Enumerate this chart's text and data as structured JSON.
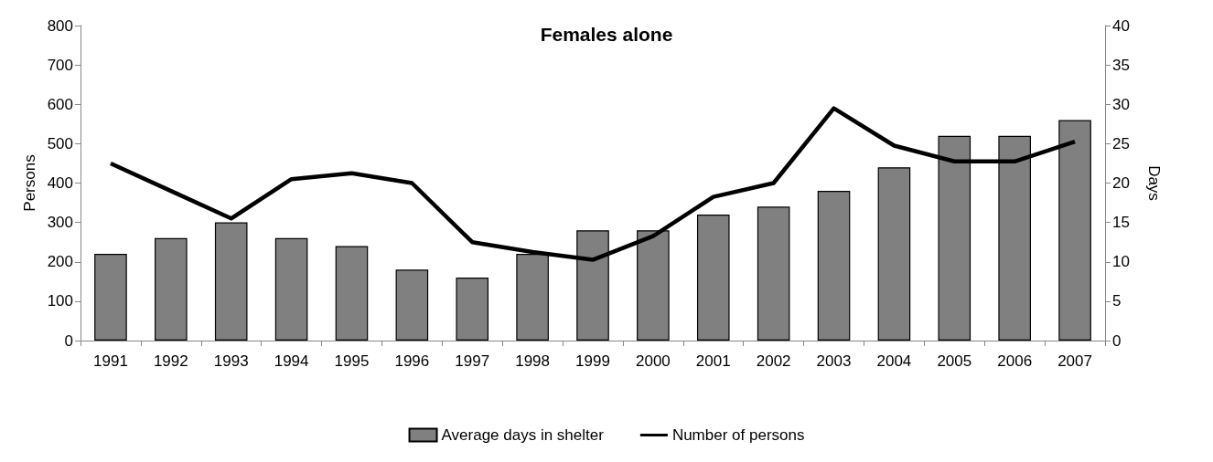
{
  "chart_data": {
    "type": "bar",
    "title": "Females alone",
    "ylabel": "Persons",
    "y2label": "Days",
    "categories": [
      "1991",
      "1992",
      "1993",
      "1994",
      "1995",
      "1996",
      "1997",
      "1998",
      "1999",
      "2000",
      "2001",
      "2002",
      "2003",
      "2004",
      "2005",
      "2006",
      "2007"
    ],
    "series": [
      {
        "name": "Average days in shelter",
        "axis": "y2",
        "color": "#808080",
        "values": [
          11,
          13,
          15,
          13,
          12,
          9,
          8,
          11,
          14,
          14,
          16,
          17,
          19,
          22,
          26,
          26,
          28
        ]
      },
      {
        "name": "Number of persons",
        "type": "line",
        "color": "#000000",
        "values": [
          450,
          380,
          310,
          410,
          425,
          400,
          250,
          225,
          205,
          265,
          365,
          400,
          590,
          495,
          455,
          455,
          505
        ]
      }
    ],
    "ylim": [
      0,
      800
    ],
    "yticks": [
      0,
      100,
      200,
      300,
      400,
      500,
      600,
      700,
      800
    ],
    "y2lim": [
      0,
      40
    ],
    "y2ticks": [
      0,
      5,
      10,
      15,
      20,
      25,
      30,
      35,
      40
    ],
    "grid": false,
    "legend": "bottom",
    "marker": "none",
    "line_style": "solid"
  }
}
